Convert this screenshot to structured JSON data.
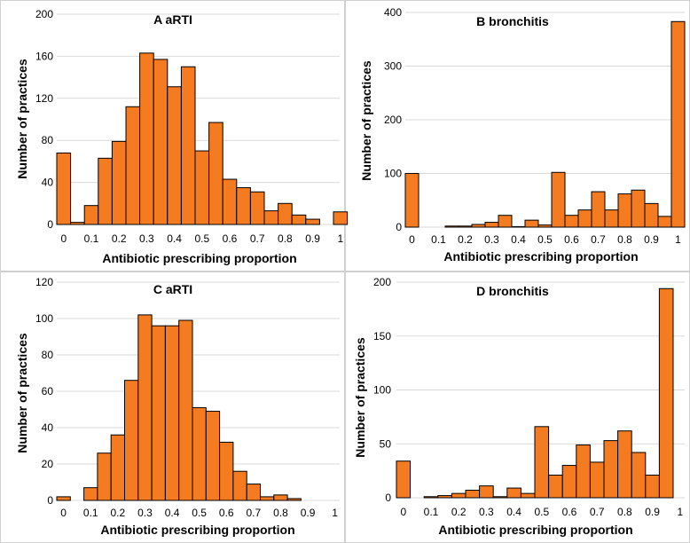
{
  "colors": {
    "bar": "#F47B20",
    "bar_edge": "#000000",
    "grid": "#d9d9d9"
  },
  "chart_data": [
    {
      "type": "bar",
      "title": "A  aRTI",
      "xlabel": "Antibiotic prescribing proportion",
      "ylabel": "Number of practices",
      "ylim": [
        0,
        200
      ],
      "yticks": [
        "0",
        "40",
        "80",
        "120",
        "160",
        "200"
      ],
      "xticks": [
        "0",
        "0.1",
        "0.2",
        "0.3",
        "0.4",
        "0.5",
        "0.6",
        "0.7",
        "0.8",
        "0.9",
        "1"
      ],
      "bins": [
        "0",
        "0.05",
        "0.1",
        "0.15",
        "0.2",
        "0.25",
        "0.3",
        "0.35",
        "0.4",
        "0.45",
        "0.5",
        "0.55",
        "0.6",
        "0.65",
        "0.7",
        "0.75",
        "0.8",
        "0.85",
        "0.9",
        "0.95",
        "1"
      ],
      "values": [
        68,
        2,
        18,
        63,
        79,
        112,
        163,
        157,
        131,
        150,
        70,
        97,
        43,
        35,
        31,
        13,
        20,
        9,
        5,
        0,
        12
      ]
    },
    {
      "type": "bar",
      "title": "B  bronchitis",
      "xlabel": "Antibiotic prescribing proportion",
      "ylabel": "Number of practices",
      "ylim": [
        0,
        400
      ],
      "yticks": [
        "0",
        "100",
        "200",
        "300",
        "400"
      ],
      "xticks": [
        "0",
        "0.1",
        "0.2",
        "0.3",
        "0.4",
        "0.5",
        "0.6",
        "0.7",
        "0.8",
        "0.9",
        "1"
      ],
      "bins": [
        "0",
        "0.05",
        "0.1",
        "0.15",
        "0.2",
        "0.25",
        "0.3",
        "0.35",
        "0.4",
        "0.45",
        "0.5",
        "0.55",
        "0.6",
        "0.65",
        "0.7",
        "0.75",
        "0.8",
        "0.85",
        "0.9",
        "0.95",
        "1"
      ],
      "values": [
        100,
        0,
        0,
        2,
        2,
        5,
        9,
        22,
        1,
        13,
        4,
        102,
        22,
        32,
        66,
        32,
        62,
        69,
        44,
        20,
        383
      ]
    },
    {
      "type": "bar",
      "title": "C  aRTI",
      "xlabel": "Antibiotic prescribing proportion",
      "ylabel": "Number of practices",
      "ylim": [
        0,
        120
      ],
      "yticks": [
        "0",
        "20",
        "40",
        "60",
        "80",
        "100",
        "120"
      ],
      "xticks": [
        "0",
        "0.1",
        "0.2",
        "0.3",
        "0.4",
        "0.5",
        "0.6",
        "0.7",
        "0.8",
        "0.9",
        "1"
      ],
      "bins": [
        "0",
        "0.05",
        "0.1",
        "0.15",
        "0.2",
        "0.25",
        "0.3",
        "0.35",
        "0.4",
        "0.45",
        "0.5",
        "0.55",
        "0.6",
        "0.65",
        "0.7",
        "0.75",
        "0.8",
        "0.85",
        "0.9",
        "0.95",
        "1"
      ],
      "values": [
        2,
        0,
        7,
        26,
        36,
        66,
        102,
        96,
        96,
        99,
        51,
        49,
        32,
        16,
        9,
        2,
        3,
        1,
        0,
        0,
        0
      ]
    },
    {
      "type": "bar",
      "title": "D  bronchitis",
      "xlabel": "Antibiotic prescribing proportion",
      "ylabel": "Number of practices",
      "ylim": [
        0,
        200
      ],
      "yticks": [
        "0",
        "50",
        "100",
        "150",
        "200"
      ],
      "xticks": [
        "0",
        "0.1",
        "0.2",
        "0.3",
        "0.4",
        "0.5",
        "0.6",
        "0.7",
        "0.8",
        "0.9",
        "1"
      ],
      "bins": [
        "0",
        "0.05",
        "0.1",
        "0.15",
        "0.2",
        "0.25",
        "0.3",
        "0.35",
        "0.4",
        "0.45",
        "0.5",
        "0.55",
        "0.6",
        "0.65",
        "0.7",
        "0.75",
        "0.8",
        "0.85",
        "0.9",
        "0.95",
        "1"
      ],
      "values": [
        34,
        0,
        1,
        2,
        4,
        7,
        11,
        1,
        9,
        4,
        66,
        21,
        30,
        49,
        33,
        53,
        62,
        42,
        21,
        194,
        0
      ]
    }
  ]
}
